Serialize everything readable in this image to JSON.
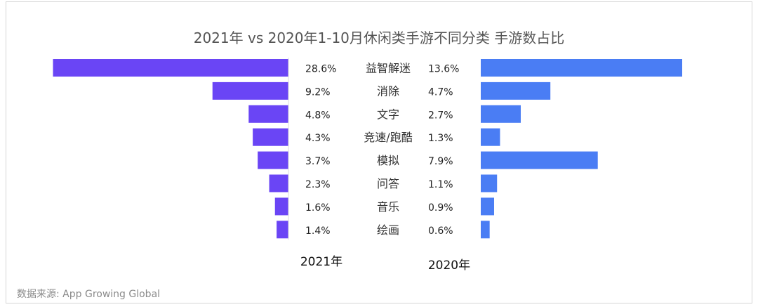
{
  "chart_data": {
    "type": "bar",
    "title": "2021年 vs 2020年1-10月休闲类手游不同分类 手游数占比",
    "categories": [
      "益智解迷",
      "消除",
      "文字",
      "竞速/跑酷",
      "模拟",
      "问答",
      "音乐",
      "绘画"
    ],
    "series": [
      {
        "name": "2021年",
        "values": [
          28.6,
          9.2,
          4.8,
          4.3,
          3.7,
          2.3,
          1.6,
          1.4
        ],
        "labels": [
          "28.6%",
          "9.2%",
          "4.8%",
          "4.3%",
          "3.7%",
          "2.3%",
          "1.6%",
          "1.4%"
        ],
        "color": "#6a45f5"
      },
      {
        "name": "2020年",
        "values": [
          13.6,
          4.7,
          2.7,
          1.3,
          7.9,
          1.1,
          0.9,
          0.6
        ],
        "labels": [
          "13.6%",
          "4.7%",
          "2.7%",
          "1.3%",
          "7.9%",
          "1.1%",
          "0.9%",
          "0.6%"
        ],
        "color": "#4a7df4"
      }
    ],
    "unit": "%",
    "xlabel": "",
    "ylabel": ""
  },
  "source": "数据来源: App Growing Global"
}
